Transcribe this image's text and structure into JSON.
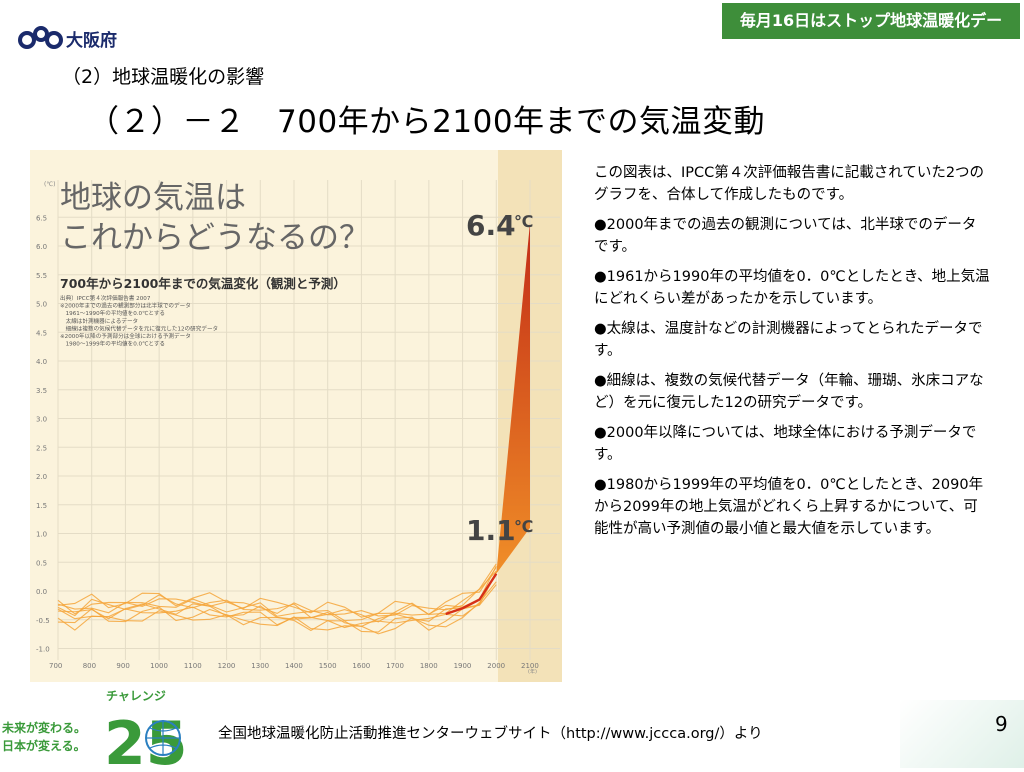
{
  "header": {
    "logo_text": "大阪府",
    "banner": "毎月16日はストップ地球温暖化デー",
    "subtitle": "（2）地球温暖化の影響",
    "title": "（２）－２　700年から2100年までの気温変動"
  },
  "chart_data": {
    "type": "line",
    "title_line1": "地球の気温は",
    "title_line2": "これからどうなるの？",
    "subtitle": "700年から2100年までの気温変化（観測と予測）",
    "notes": [
      "出典）IPCC第４次評価報告書 2007",
      "※2000年までの過去の観測部分は北半球でのデータ",
      "　1961～1990年の平均値を0.0℃とする",
      "　太線は計測機器によるデータ",
      "　細線は複数の気候代替データを元に復元した12の研究データ",
      "※2000年以降の予測部分は全球における予測データ",
      "　1980～1999年の平均値を0.0℃とする"
    ],
    "y_unit": "(℃)",
    "x_unit": "(年)",
    "y_ticks": [
      "6.5",
      "6.0",
      "5.5",
      "5.0",
      "4.5",
      "4.0",
      "3.5",
      "3.0",
      "2.5",
      "2.0",
      "1.5",
      "1.0",
      "0.5",
      "0.0",
      "-0.5",
      "-1.0"
    ],
    "x_ticks": [
      "700",
      "800",
      "900",
      "1000",
      "1100",
      "1200",
      "1300",
      "1400",
      "1500",
      "1600",
      "1700",
      "1800",
      "1900",
      "2000",
      "2100"
    ],
    "ylim": [
      -1.2,
      6.8
    ],
    "xlim": [
      700,
      2100
    ],
    "annotations": [
      {
        "text": "6.4",
        "unit": "℃",
        "x": 2100,
        "y": 6.4
      },
      {
        "text": "1.1",
        "unit": "℃",
        "x": 2100,
        "y": 1.1
      }
    ],
    "proxy_series": {
      "x": [
        700,
        750,
        800,
        850,
        900,
        950,
        1000,
        1050,
        1100,
        1150,
        1200,
        1250,
        1300,
        1350,
        1400,
        1450,
        1500,
        1550,
        1600,
        1650,
        1700,
        1750,
        1800,
        1850,
        1900,
        1950,
        2000
      ],
      "y": [
        -0.35,
        -0.45,
        -0.3,
        -0.4,
        -0.35,
        -0.3,
        -0.25,
        -0.35,
        -0.3,
        -0.3,
        -0.35,
        -0.4,
        -0.35,
        -0.45,
        -0.4,
        -0.5,
        -0.45,
        -0.5,
        -0.55,
        -0.55,
        -0.45,
        -0.4,
        -0.5,
        -0.4,
        -0.3,
        -0.15,
        0.3
      ]
    },
    "projection": {
      "x": [
        2000,
        2100
      ],
      "upper": [
        0.3,
        6.4
      ],
      "lower": [
        0.3,
        1.1
      ]
    },
    "colors": {
      "background": "#fbf3dc",
      "future_band": "#f3e2b8",
      "proxy": "#f4a53a",
      "instrument": "#d63018",
      "projection_high": "#c0220e",
      "projection_low": "#f08a20"
    }
  },
  "description": [
    "この図表は、IPCC第４次評価報告書に記載されていた2つのグラフを、合体して作成したものです。",
    "●2000年までの過去の観測については、北半球でのデータです。",
    "●1961から1990年の平均値を0．0℃としたとき、地上気温にどれくらい差があったかを示しています。",
    "●太線は、温度計などの計測機器によってとられたデータです。",
    "●細線は、複数の気候代替データ（年輪、珊瑚、氷床コアなど）を元に復元した12の研究データです。",
    "●2000年以降については、地球全体における予測データです。",
    "●1980から1999年の平均値を0．0℃としたとき、2090年から2099年の地上気温がどれくら上昇するかについて、可能性が高い予測値の最小値と最大値を示しています。"
  ],
  "footer": {
    "challenge_label": "チャレンジ",
    "challenge_number": "25",
    "slogan_line1": "未来が変わる。",
    "slogan_line2": "日本が変える。",
    "source": "全国地球温暖化防止活動推進センターウェブサイト（http://www.jccca.org/）より",
    "page_number": "9"
  }
}
